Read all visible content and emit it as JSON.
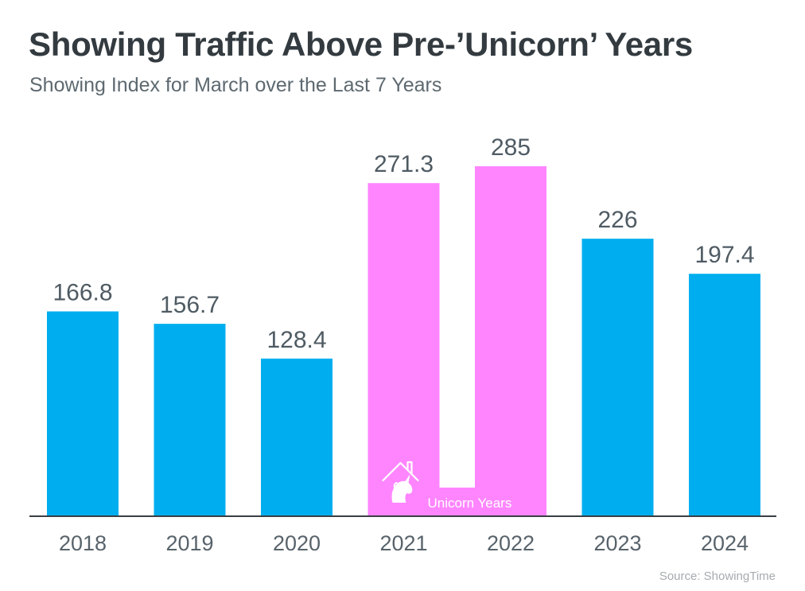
{
  "header": {
    "title": "Showing Traffic Above Pre-’Unicorn’ Years",
    "subtitle": "Showing Index for March over the Last 7 Years"
  },
  "footer": {
    "source": "Source: ShowingTime"
  },
  "colors": {
    "regular_bar": "#00aeef",
    "unicorn_bar": "#ff85ff",
    "axis": "#3a3f44"
  },
  "chart_data": {
    "type": "bar",
    "title": "Showing Traffic Above Pre-’Unicorn’ Years",
    "subtitle": "Showing Index for March over the Last 7 Years",
    "xlabel": "",
    "ylabel": "",
    "ylim": [
      0,
      285
    ],
    "grid": false,
    "legend": "none",
    "categories": [
      "2018",
      "2019",
      "2020",
      "2021",
      "2022",
      "2023",
      "2024"
    ],
    "values": [
      166.8,
      156.7,
      128.4,
      271.3,
      285,
      226,
      197.4
    ],
    "value_labels": [
      "166.8",
      "156.7",
      "128.4",
      "271.3",
      "285",
      "226",
      "197.4"
    ],
    "highlight": {
      "label": "Unicorn Years",
      "categories": [
        "2021",
        "2022"
      ],
      "icon": "unicorn-house-icon"
    }
  }
}
